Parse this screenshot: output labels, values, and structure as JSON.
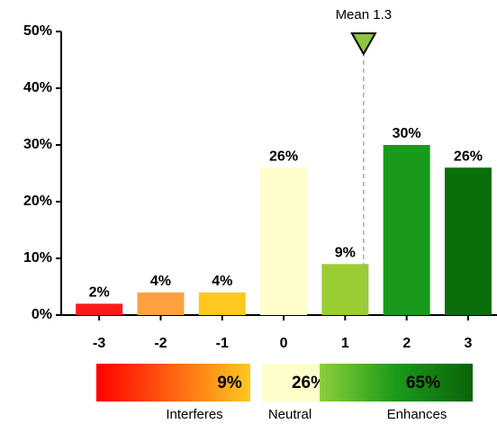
{
  "chart_data": {
    "type": "bar",
    "categories": [
      "-3",
      "-2",
      "-1",
      "0",
      "1",
      "2",
      "3"
    ],
    "values": [
      2,
      4,
      4,
      26,
      9,
      30,
      26
    ],
    "value_labels": [
      "2%",
      "4%",
      "4%",
      "26%",
      "9%",
      "30%",
      "26%"
    ],
    "colors": [
      "#ff1a1a",
      "#ffa040",
      "#ffc820",
      "#ffffcc",
      "#9acd32",
      "#1a9a1a",
      "#0a6e0a"
    ],
    "ylim": [
      0,
      50
    ],
    "yticks": [
      {
        "value": 0,
        "label": "0%"
      },
      {
        "value": 10,
        "label": "10%"
      },
      {
        "value": 20,
        "label": "20%"
      },
      {
        "value": 30,
        "label": "30%"
      },
      {
        "value": 40,
        "label": "40%"
      },
      {
        "value": 50,
        "label": "50%"
      }
    ],
    "mean": {
      "value": 1.3,
      "label": "Mean 1.3"
    },
    "summary": [
      {
        "name": "Interferes",
        "value": 9,
        "value_label": "9%"
      },
      {
        "name": "Neutral",
        "value": 26,
        "value_label": "26%"
      },
      {
        "name": "Enhances",
        "value": 65,
        "value_label": "65%"
      }
    ]
  }
}
